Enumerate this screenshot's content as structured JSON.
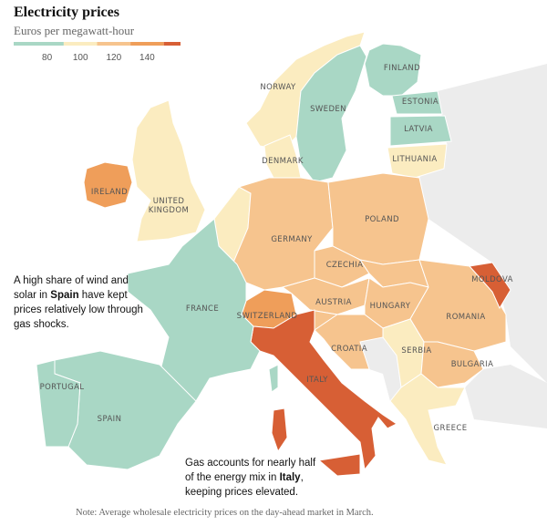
{
  "title": "Electricity prices",
  "subtitle": "Euros per megawatt-hour",
  "legend": {
    "bins": [
      60,
      90,
      110,
      130,
      150,
      160
    ],
    "colors": [
      "#a9d7c5",
      "#fbecc0",
      "#f6c48e",
      "#ef9e5a",
      "#d75f35"
    ],
    "ticks": [
      80,
      100,
      120,
      140
    ]
  },
  "countries": [
    {
      "label": "NORWAY",
      "value": 100
    },
    {
      "label": "SWEDEN",
      "value": 75
    },
    {
      "label": "FINLAND",
      "value": 75
    },
    {
      "label": "ESTONIA",
      "value": 80
    },
    {
      "label": "LATVIA",
      "value": 80
    },
    {
      "label": "LITHUANIA",
      "value": 100
    },
    {
      "label": "DENMARK",
      "value": 100
    },
    {
      "label": "IRELAND",
      "value": 140
    },
    {
      "label": "UNITED KINGDOM",
      "value": 100
    },
    {
      "label": null,
      "value": 100
    },
    {
      "label": "GERMANY",
      "value": 120
    },
    {
      "label": "POLAND",
      "value": 120
    },
    {
      "label": "CZECHIA",
      "value": 120
    },
    {
      "label": null,
      "value": 120
    },
    {
      "label": "AUSTRIA",
      "value": 125
    },
    {
      "label": "HUNGARY",
      "value": 125
    },
    {
      "label": "ROMANIA",
      "value": 120
    },
    {
      "label": "MOLDOVA",
      "value": 155
    },
    {
      "label": "SWITZERLAND",
      "value": 140
    },
    {
      "label": null,
      "value": 125
    },
    {
      "label": "CROATIA",
      "value": 125
    },
    {
      "label": "SERBIA",
      "value": 100
    },
    {
      "label": "BULGARIA",
      "value": 120
    },
    {
      "label": "GREECE",
      "value": 100
    },
    {
      "label": "ITALY",
      "value": 155
    },
    {
      "label": "FRANCE",
      "value": 75
    },
    {
      "label": "SPAIN",
      "value": 70
    },
    {
      "label": "PORTUGAL",
      "value": 70
    }
  ],
  "annotations": [
    {
      "parts": [
        "A high share of wind and solar in ",
        "Spain",
        " have kept prices relatively low through gas shocks."
      ]
    },
    {
      "parts": [
        "Gas accounts for nearly half of the energy mix in ",
        "Italy",
        ", keeping prices elevated."
      ]
    }
  ],
  "note": "Note: Average wholesale electricity prices on the day-ahead market in March."
}
